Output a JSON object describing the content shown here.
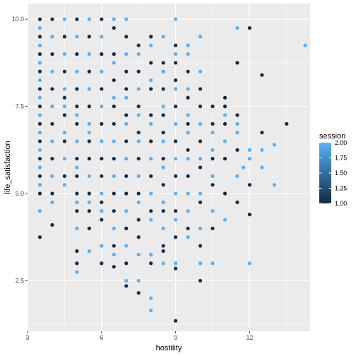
{
  "chart_data": {
    "type": "scatter",
    "title": "",
    "xlabel": "hostility",
    "ylabel": "life_satisfaction",
    "xlim": [
      3.0,
      14.45
    ],
    "ylim": [
      1.05,
      10.45
    ],
    "x_ticks": [
      3,
      6,
      9,
      12
    ],
    "y_ticks": [
      2.5,
      5.0,
      7.5,
      10.0
    ],
    "x_tick_labels": [
      "3",
      "6",
      "9",
      "12"
    ],
    "y_tick_labels": [
      "2.5",
      "5.0",
      "7.5",
      "10.0"
    ],
    "grid": true,
    "legend": {
      "title": "session",
      "position": "right",
      "type": "colorbar",
      "range": [
        1.0,
        2.0
      ],
      "breaks": [
        1.0,
        1.25,
        1.5,
        1.75,
        2.0
      ],
      "break_labels": [
        "1.00",
        "1.25",
        "1.50",
        "1.75",
        "2.00"
      ],
      "low_color": "#132b43",
      "high_color": "#56b1f7"
    },
    "colors": {
      "panel_background": "#ebebeb",
      "grid_major": "#ffffff",
      "session_1": "#132b43",
      "session_2": "#56b1f7"
    },
    "series": [
      {
        "session": 1,
        "points": [
          [
            3.5,
            3.75
          ],
          [
            3.5,
            5.0
          ],
          [
            3.5,
            5.5
          ],
          [
            3.5,
            6.0
          ],
          [
            3.5,
            6.5
          ],
          [
            3.5,
            7.0
          ],
          [
            3.5,
            7.5
          ],
          [
            3.5,
            8.0
          ],
          [
            3.5,
            8.5
          ],
          [
            3.5,
            9.0
          ],
          [
            3.5,
            9.5
          ],
          [
            3.5,
            10.0
          ],
          [
            4.0,
            4.1
          ],
          [
            4.0,
            5.0
          ],
          [
            4.0,
            6.0
          ],
          [
            4.0,
            7.0
          ],
          [
            4.0,
            8.0
          ],
          [
            4.0,
            9.0
          ],
          [
            4.0,
            10.0
          ],
          [
            4.5,
            5.5
          ],
          [
            4.5,
            6.5
          ],
          [
            4.5,
            7.25
          ],
          [
            4.5,
            7.75
          ],
          [
            4.5,
            8.5
          ],
          [
            4.5,
            9.5
          ],
          [
            5.0,
            3.0
          ],
          [
            5.0,
            3.35
          ],
          [
            5.0,
            4.5
          ],
          [
            5.0,
            5.0
          ],
          [
            5.0,
            5.5
          ],
          [
            5.0,
            6.0
          ],
          [
            5.0,
            7.0
          ],
          [
            5.0,
            7.5
          ],
          [
            5.0,
            8.0
          ],
          [
            5.0,
            9.0
          ],
          [
            5.0,
            10.0
          ],
          [
            5.5,
            4.0
          ],
          [
            5.5,
            4.5
          ],
          [
            5.5,
            5.0
          ],
          [
            5.5,
            6.0
          ],
          [
            5.5,
            6.5
          ],
          [
            5.5,
            7.5
          ],
          [
            5.5,
            8.5
          ],
          [
            5.5,
            9.5
          ],
          [
            6.0,
            3.0
          ],
          [
            6.0,
            4.25
          ],
          [
            6.0,
            4.75
          ],
          [
            6.0,
            5.5
          ],
          [
            6.0,
            6.0
          ],
          [
            6.0,
            7.0
          ],
          [
            6.0,
            8.0
          ],
          [
            6.0,
            9.0
          ],
          [
            6.0,
            10.0
          ],
          [
            6.5,
            2.9
          ],
          [
            6.5,
            3.5
          ],
          [
            6.5,
            4.5
          ],
          [
            6.5,
            5.0
          ],
          [
            6.5,
            6.0
          ],
          [
            6.5,
            7.0
          ],
          [
            6.5,
            7.5
          ],
          [
            6.5,
            8.25
          ],
          [
            6.5,
            9.0
          ],
          [
            6.5,
            9.75
          ],
          [
            7.0,
            2.35
          ],
          [
            7.0,
            3.0
          ],
          [
            7.0,
            4.0
          ],
          [
            7.0,
            5.0
          ],
          [
            7.0,
            5.5
          ],
          [
            7.0,
            6.5
          ],
          [
            7.0,
            7.25
          ],
          [
            7.0,
            8.0
          ],
          [
            7.0,
            8.5
          ],
          [
            7.0,
            9.5
          ],
          [
            7.5,
            2.15
          ],
          [
            7.5,
            3.75
          ],
          [
            7.5,
            4.25
          ],
          [
            7.5,
            5.0
          ],
          [
            7.5,
            6.0
          ],
          [
            7.5,
            6.75
          ],
          [
            7.5,
            7.5
          ],
          [
            7.5,
            8.5
          ],
          [
            7.5,
            9.25
          ],
          [
            8.0,
            3.0
          ],
          [
            8.0,
            4.5
          ],
          [
            8.0,
            5.5
          ],
          [
            8.0,
            6.5
          ],
          [
            8.0,
            7.25
          ],
          [
            8.0,
            8.0
          ],
          [
            8.0,
            8.75
          ],
          [
            8.0,
            9.5
          ],
          [
            8.5,
            3.35
          ],
          [
            8.5,
            3.5
          ],
          [
            8.5,
            4.5
          ],
          [
            8.5,
            5.25
          ],
          [
            8.5,
            6.0
          ],
          [
            8.5,
            6.75
          ],
          [
            8.5,
            7.25
          ],
          [
            8.5,
            8.0
          ],
          [
            8.5,
            8.75
          ],
          [
            9.0,
            1.35
          ],
          [
            9.0,
            2.85
          ],
          [
            9.0,
            3.75
          ],
          [
            9.0,
            4.5
          ],
          [
            9.0,
            5.5
          ],
          [
            9.0,
            6.5
          ],
          [
            9.0,
            7.5
          ],
          [
            9.0,
            8.25
          ],
          [
            9.0,
            8.75
          ],
          [
            9.0,
            9.25
          ],
          [
            9.5,
            4.0
          ],
          [
            9.5,
            5.5
          ],
          [
            9.5,
            6.25
          ],
          [
            9.5,
            7.0
          ],
          [
            9.5,
            7.75
          ],
          [
            9.5,
            8.5
          ],
          [
            10.0,
            2.5
          ],
          [
            10.0,
            3.5
          ],
          [
            10.0,
            4.75
          ],
          [
            10.0,
            5.75
          ],
          [
            10.0,
            6.5
          ],
          [
            10.0,
            7.5
          ],
          [
            10.0,
            8.0
          ],
          [
            10.5,
            4.0
          ],
          [
            10.5,
            5.25
          ],
          [
            10.5,
            6.0
          ],
          [
            10.5,
            7.0
          ],
          [
            10.5,
            7.5
          ],
          [
            11.0,
            5.0
          ],
          [
            11.0,
            6.0
          ],
          [
            11.0,
            7.0
          ],
          [
            11.0,
            7.5
          ],
          [
            11.0,
            7.75
          ],
          [
            11.5,
            4.75
          ],
          [
            11.5,
            6.25
          ],
          [
            11.5,
            7.25
          ],
          [
            11.5,
            8.75
          ],
          [
            12.0,
            4.4
          ],
          [
            12.0,
            5.25
          ],
          [
            12.0,
            9.75
          ],
          [
            12.5,
            6.75
          ],
          [
            12.5,
            8.4
          ],
          [
            13.5,
            7.0
          ]
        ]
      },
      {
        "session": 2,
        "points": [
          [
            3.5,
            4.5
          ],
          [
            3.5,
            5.25
          ],
          [
            3.5,
            5.75
          ],
          [
            3.5,
            6.25
          ],
          [
            3.5,
            6.75
          ],
          [
            3.5,
            7.25
          ],
          [
            3.5,
            7.75
          ],
          [
            3.5,
            8.25
          ],
          [
            3.5,
            8.75
          ],
          [
            3.5,
            9.25
          ],
          [
            3.5,
            9.75
          ],
          [
            4.0,
            4.75
          ],
          [
            4.0,
            5.5
          ],
          [
            4.0,
            6.5
          ],
          [
            4.0,
            7.5
          ],
          [
            4.0,
            8.5
          ],
          [
            4.0,
            9.5
          ],
          [
            4.5,
            5.25
          ],
          [
            4.5,
            6.0
          ],
          [
            4.5,
            6.75
          ],
          [
            4.5,
            7.5
          ],
          [
            4.5,
            8.0
          ],
          [
            4.5,
            9.0
          ],
          [
            4.5,
            10.0
          ],
          [
            5.0,
            2.75
          ],
          [
            5.0,
            4.0
          ],
          [
            5.0,
            4.75
          ],
          [
            5.0,
            5.75
          ],
          [
            5.0,
            6.5
          ],
          [
            5.0,
            7.25
          ],
          [
            5.0,
            8.5
          ],
          [
            5.0,
            9.5
          ],
          [
            5.5,
            3.35
          ],
          [
            5.5,
            4.75
          ],
          [
            5.5,
            5.5
          ],
          [
            5.5,
            6.75
          ],
          [
            5.5,
            7.0
          ],
          [
            5.5,
            8.0
          ],
          [
            5.5,
            9.0
          ],
          [
            5.5,
            10.0
          ],
          [
            6.0,
            3.5
          ],
          [
            6.0,
            4.5
          ],
          [
            6.0,
            5.0
          ],
          [
            6.0,
            6.5
          ],
          [
            6.0,
            7.5
          ],
          [
            6.0,
            8.5
          ],
          [
            6.0,
            9.5
          ],
          [
            6.5,
            3.25
          ],
          [
            6.5,
            4.0
          ],
          [
            6.5,
            5.5
          ],
          [
            6.5,
            6.5
          ],
          [
            6.5,
            7.75
          ],
          [
            6.5,
            8.75
          ],
          [
            6.5,
            10.0
          ],
          [
            7.0,
            2.5
          ],
          [
            7.0,
            3.5
          ],
          [
            7.0,
            4.5
          ],
          [
            7.0,
            6.0
          ],
          [
            7.0,
            7.0
          ],
          [
            7.0,
            7.75
          ],
          [
            7.0,
            9.0
          ],
          [
            7.0,
            10.0
          ],
          [
            7.5,
            2.5
          ],
          [
            7.5,
            3.25
          ],
          [
            7.5,
            4.75
          ],
          [
            7.5,
            5.5
          ],
          [
            7.5,
            6.5
          ],
          [
            7.5,
            7.25
          ],
          [
            7.5,
            8.0
          ],
          [
            7.5,
            9.0
          ],
          [
            8.0,
            1.65
          ],
          [
            8.0,
            2.0
          ],
          [
            8.0,
            3.25
          ],
          [
            8.0,
            4.25
          ],
          [
            8.0,
            5.0
          ],
          [
            8.0,
            6.0
          ],
          [
            8.0,
            7.0
          ],
          [
            8.0,
            8.25
          ],
          [
            8.0,
            9.25
          ],
          [
            8.5,
            3.0
          ],
          [
            8.5,
            4.0
          ],
          [
            8.5,
            4.75
          ],
          [
            8.5,
            5.75
          ],
          [
            8.5,
            6.5
          ],
          [
            8.5,
            7.5
          ],
          [
            8.5,
            8.5
          ],
          [
            8.5,
            9.5
          ],
          [
            9.0,
            3.0
          ],
          [
            9.0,
            4.25
          ],
          [
            9.0,
            5.0
          ],
          [
            9.0,
            6.0
          ],
          [
            9.0,
            7.0
          ],
          [
            9.0,
            8.0
          ],
          [
            9.0,
            9.0
          ],
          [
            9.0,
            10.0
          ],
          [
            9.5,
            3.75
          ],
          [
            9.5,
            4.5
          ],
          [
            9.5,
            5.0
          ],
          [
            9.5,
            6.0
          ],
          [
            9.5,
            6.75
          ],
          [
            9.5,
            7.25
          ],
          [
            9.5,
            8.0
          ],
          [
            9.5,
            9.0
          ],
          [
            9.5,
            9.25
          ],
          [
            10.0,
            3.0
          ],
          [
            10.0,
            4.0
          ],
          [
            10.0,
            5.0
          ],
          [
            10.0,
            6.0
          ],
          [
            10.0,
            7.0
          ],
          [
            10.0,
            8.5
          ],
          [
            10.0,
            9.5
          ],
          [
            10.5,
            3.0
          ],
          [
            10.5,
            4.5
          ],
          [
            10.5,
            5.5
          ],
          [
            10.5,
            6.25
          ],
          [
            10.5,
            6.75
          ],
          [
            11.0,
            4.25
          ],
          [
            11.0,
            6.5
          ],
          [
            11.0,
            7.25
          ],
          [
            11.5,
            5.5
          ],
          [
            11.5,
            6.75
          ],
          [
            11.5,
            7.0
          ],
          [
            12.0,
            3.0
          ],
          [
            12.0,
            6.0
          ],
          [
            12.0,
            6.25
          ],
          [
            11.75,
            5.75
          ],
          [
            11.5,
            9.75
          ],
          [
            12.5,
            5.75
          ],
          [
            12.5,
            6.25
          ],
          [
            13.0,
            5.25
          ],
          [
            13.0,
            6.4
          ],
          [
            14.25,
            9.25
          ]
        ]
      }
    ]
  }
}
